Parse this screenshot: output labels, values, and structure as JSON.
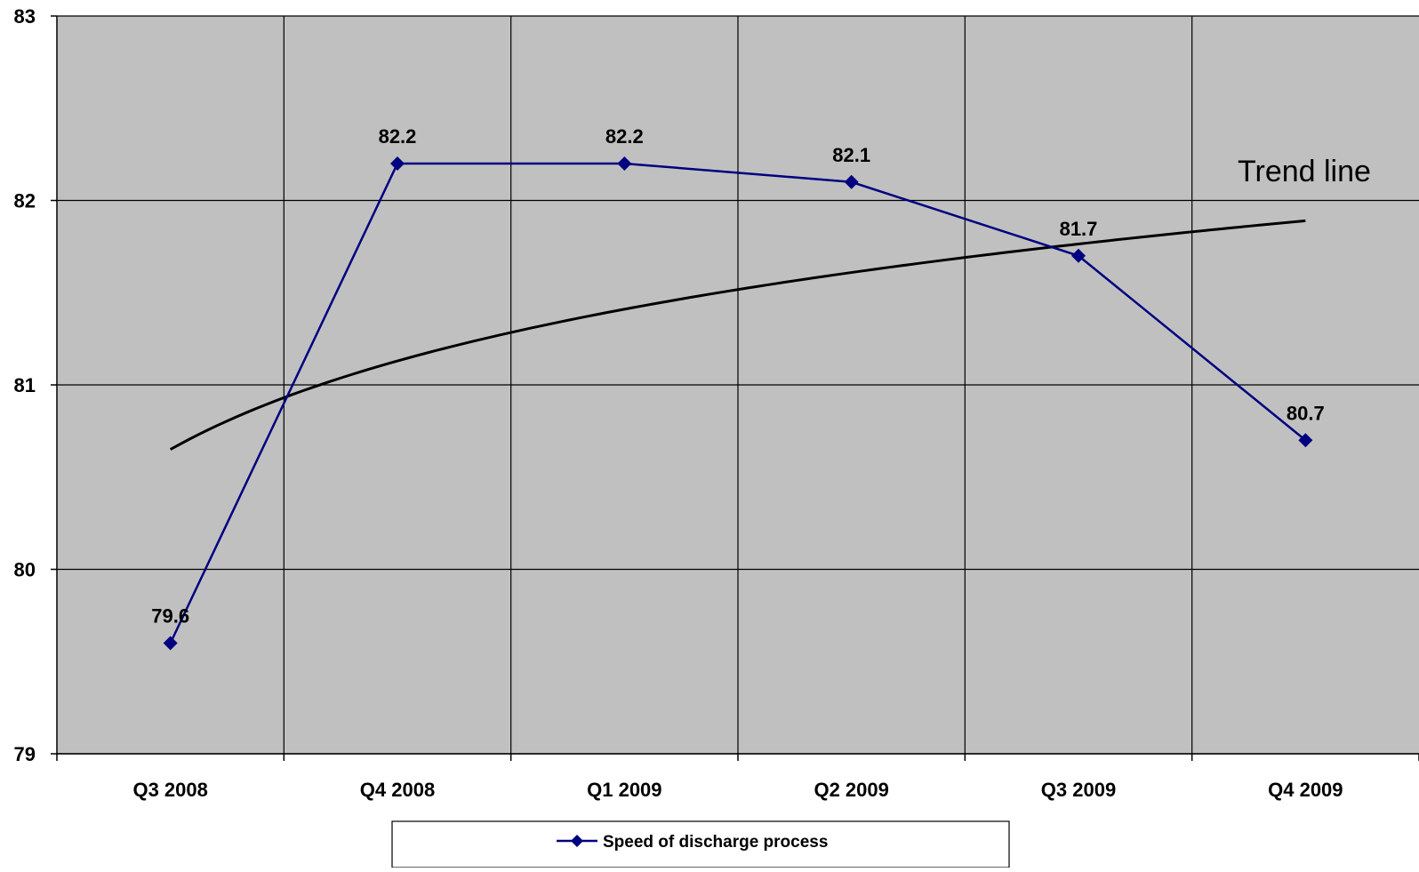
{
  "chart_data": {
    "type": "line",
    "categories": [
      "Q3 2008",
      "Q4 2008",
      "Q1 2009",
      "Q2 2009",
      "Q3 2009",
      "Q4 2009"
    ],
    "series": [
      {
        "name": "Speed of discharge process",
        "values": [
          79.6,
          82.2,
          82.2,
          82.1,
          81.7,
          80.7
        ],
        "color": "#000080"
      }
    ],
    "trendline": {
      "label": "Trend line",
      "type": "logarithmic",
      "values": [
        80.65,
        81.13,
        81.41,
        81.61,
        81.77,
        81.89
      ],
      "color": "#000000"
    },
    "data_labels": [
      "79.6",
      "82.2",
      "82.2",
      "82.1",
      "81.7",
      "80.7"
    ],
    "ylim": [
      79,
      83
    ],
    "yticks": [
      79,
      80,
      81,
      82,
      83
    ],
    "ytick_labels": [
      "79",
      "80",
      "81",
      "82",
      "83"
    ],
    "plot_background": "#C0C0C0",
    "grid": true,
    "legend_position": "bottom",
    "title": "",
    "xlabel": "",
    "ylabel": ""
  }
}
